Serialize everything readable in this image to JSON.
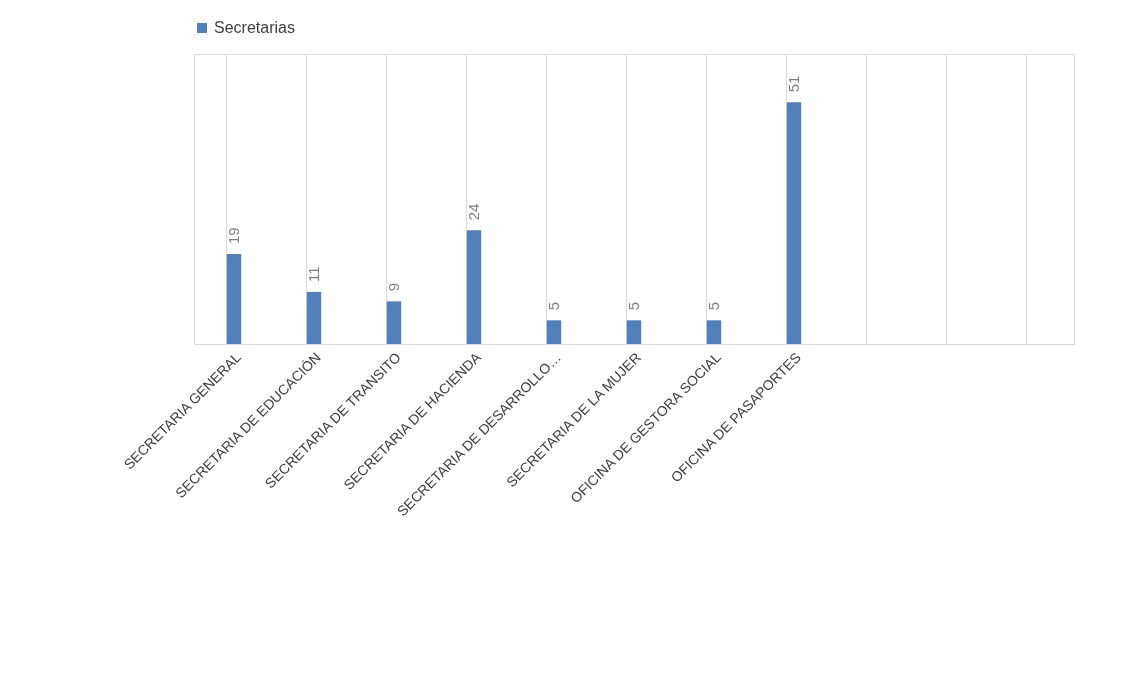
{
  "chart_data": {
    "type": "bar",
    "categories": [
      "SECRETARIA GENERAL",
      "SECRETARIA DE EDUCACIÓN",
      "SECRETARIA DE TRANSITO",
      "SECRETARIA DE HACIENDA",
      "SECRETARIA DE DESARROLLO…",
      "SECRETARIA DE LA MUJER",
      "OFICINA DE GESTORA SOCIAL",
      "OFICINA DE PASAPORTES",
      null,
      null,
      null
    ],
    "series": [
      {
        "name": "Secretarias",
        "color": "#4f81bd",
        "values": [
          19,
          11,
          9,
          24,
          5,
          5,
          5,
          51,
          null,
          null,
          null
        ]
      }
    ],
    "data_labels": true,
    "grid": "x",
    "legend": "top"
  }
}
